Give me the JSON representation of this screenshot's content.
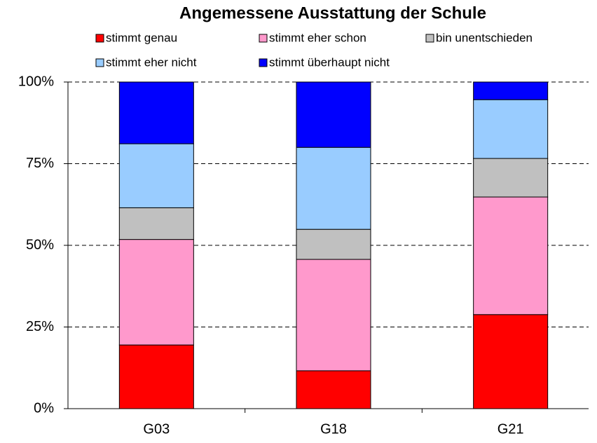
{
  "chart_data": {
    "type": "stacked_bar",
    "title": "Angemessene Ausstattung der Schule",
    "categories": [
      "G03",
      "G18",
      "G21"
    ],
    "series": [
      {
        "name": "stimmt genau",
        "color": "#ff0000",
        "values": [
          19.5,
          11.6,
          28.8
        ]
      },
      {
        "name": "stimmt eher schon",
        "color": "#ff99cc",
        "values": [
          32.3,
          34.1,
          36.0
        ]
      },
      {
        "name": "bin unentschieden",
        "color": "#c0c0c0",
        "values": [
          9.7,
          9.2,
          11.8
        ]
      },
      {
        "name": "stimmt eher nicht",
        "color": "#99ccff",
        "values": [
          19.6,
          25.1,
          18.0
        ]
      },
      {
        "name": "stimmt überhaupt nicht",
        "color": "#0000ff",
        "values": [
          18.9,
          20.0,
          5.4
        ]
      }
    ],
    "ylim": [
      0,
      100
    ],
    "yticks": [
      {
        "value": 0,
        "label": "0%"
      },
      {
        "value": 25,
        "label": "25%"
      },
      {
        "value": 50,
        "label": "50%"
      },
      {
        "value": 75,
        "label": "75%"
      },
      {
        "value": 100,
        "label": "100%"
      }
    ],
    "grid": true
  }
}
